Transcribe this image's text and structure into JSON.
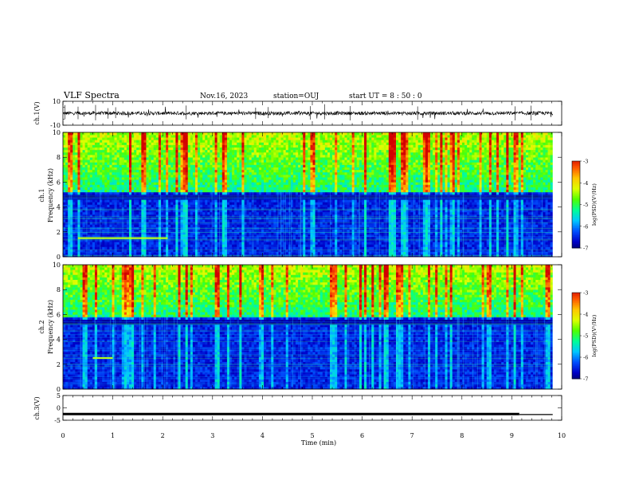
{
  "header": {
    "title": "VLF Spectra",
    "date": "Nov.16, 2023",
    "station": "station=OUJ",
    "start": "start  UT =  8 : 50 : 0"
  },
  "colors": {
    "colormap": [
      "#00004e",
      "#0000c8",
      "#0050ff",
      "#00c8ff",
      "#00ff96",
      "#50ff00",
      "#dcff00",
      "#ffc800",
      "#ff5a00",
      "#d20000",
      "#ffffff"
    ]
  },
  "chart_data": [
    {
      "type": "line",
      "name": "waveform-ch1",
      "ylabel": "ch.1(V)",
      "yticks": [
        "10",
        "-10"
      ],
      "ylim": [
        -10,
        10
      ],
      "xlim": [
        0,
        10
      ],
      "baseline": 0,
      "noise_band": 1.5
    },
    {
      "type": "heatmap",
      "name": "spectrogram-ch1",
      "ylabel": "ch.1\nFrequency  (kHz)",
      "yticks": [
        "0",
        "2",
        "4",
        "6",
        "8",
        "10"
      ],
      "ylim": [
        0,
        10
      ],
      "xlim": [
        0,
        9.82
      ],
      "colorbar": {
        "label": "log(PSD)(V²/Hz)",
        "ticks": [
          "-3",
          "-4",
          "-5",
          "-6",
          "-7"
        ],
        "range": [
          -7,
          -3
        ]
      },
      "features": {
        "high_band_kHz": [
          5.2,
          10
        ],
        "dark_band_kHz": [
          4.6,
          5.0
        ],
        "bright_line": {
          "freq_kHz": 1.5,
          "t_start": 0.3,
          "t_end": 2.1
        }
      }
    },
    {
      "type": "heatmap",
      "name": "spectrogram-ch2",
      "ylabel": "ch.2\nFrequency  (kHz)",
      "yticks": [
        "0",
        "2",
        "4",
        "6",
        "8",
        "10"
      ],
      "ylim": [
        0,
        10
      ],
      "xlim": [
        0,
        9.82
      ],
      "colorbar": {
        "label": "log(PSD)(V²/Hz)",
        "ticks": [
          "-3",
          "-4",
          "-5",
          "-6",
          "-7"
        ],
        "range": [
          -7,
          -3
        ]
      },
      "features": {
        "high_band_kHz": [
          5.8,
          10
        ],
        "dark_band_kHz": [
          5.2,
          5.6
        ],
        "bright_line": {
          "freq_kHz": 2.5,
          "t_start": 0.6,
          "t_end": 1.0
        }
      }
    },
    {
      "type": "line",
      "name": "waveform-ch3",
      "ylabel": "ch.3(V)",
      "yticks": [
        "5",
        "0",
        "-5"
      ],
      "ylim": [
        -5,
        5
      ],
      "xlim": [
        0,
        10
      ],
      "segments": [
        {
          "t_start": 0,
          "t_end": 9.15,
          "value": -2.5
        },
        {
          "t_start": 9.15,
          "t_end": 9.82,
          "value": -2.7
        }
      ]
    }
  ],
  "xaxis": {
    "label": "Time  (min)",
    "ticks": [
      "0",
      "1",
      "2",
      "3",
      "4",
      "5",
      "6",
      "7",
      "8",
      "9",
      "10"
    ],
    "range": [
      0,
      10
    ]
  }
}
